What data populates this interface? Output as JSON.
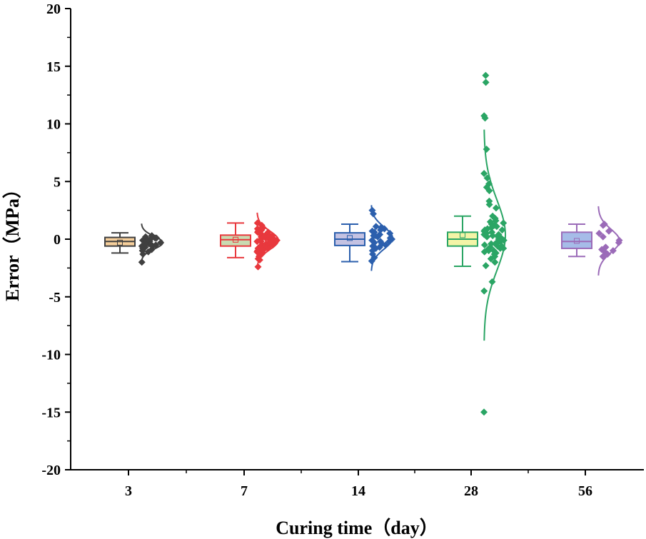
{
  "chart_data": {
    "type": "box",
    "xlabel": "Curing time（day）",
    "ylabel": "Error（MPa）",
    "ylim": [
      -20,
      20
    ],
    "yticks": [
      -20,
      -15,
      -10,
      -5,
      0,
      5,
      10,
      15,
      20
    ],
    "ytick_labels": [
      "-20",
      "-15",
      "-10",
      "-5",
      "0",
      "5",
      "10",
      "15",
      "20"
    ],
    "categories": [
      "3",
      "7",
      "14",
      "28",
      "56"
    ],
    "series": [
      {
        "name": "3",
        "color": "#404040",
        "box_fill": "#f6cf9b",
        "whisker_low": -1.2,
        "q1": -0.6,
        "median": -0.2,
        "q3": 0.15,
        "whisker_high": 0.55,
        "mean": -0.3,
        "points": [
          0.3,
          0.1,
          -0.1,
          -0.2,
          -0.3,
          -0.2,
          -0.4,
          -0.5,
          -0.6,
          -0.7,
          -1.0,
          -1.1,
          -1.3,
          -2.0,
          0.0,
          -0.3,
          -0.8,
          -0.5,
          0.2,
          -0.1,
          -0.6,
          -0.9,
          -0.4,
          0.1
        ],
        "curve": {
          "mean": -0.3,
          "sd": 0.55
        }
      },
      {
        "name": "7",
        "color": "#e8383d",
        "box_fill": "#c9dbb1",
        "whisker_low": -1.6,
        "q1": -0.6,
        "median": -0.05,
        "q3": 0.35,
        "whisker_high": 1.4,
        "mean": -0.05,
        "points": [
          1.4,
          1.2,
          1.0,
          0.9,
          0.8,
          0.7,
          0.6,
          0.5,
          0.4,
          0.3,
          0.2,
          0.1,
          0.0,
          -0.1,
          -0.2,
          -0.3,
          -0.4,
          -0.5,
          -0.6,
          -0.7,
          -0.8,
          -0.9,
          -1.0,
          -1.1,
          -1.2,
          -1.3,
          -1.4,
          -1.5,
          -1.7,
          -1.8,
          -2.4,
          0.6,
          0.3,
          0.0,
          -0.2,
          -0.4,
          -0.6,
          -0.8,
          0.2,
          -0.1,
          -0.3,
          -0.5,
          -0.7,
          -1.0,
          0.8,
          0.5,
          -1.2,
          -0.9
        ],
        "curve": {
          "mean": -0.1,
          "sd": 0.8
        }
      },
      {
        "name": "14",
        "color": "#2b5fad",
        "box_fill": "#c4c2e2",
        "whisker_low": -1.95,
        "q1": -0.55,
        "median": 0.0,
        "q3": 0.55,
        "whisker_high": 1.3,
        "mean": 0.1,
        "points": [
          2.5,
          2.2,
          1.1,
          1.0,
          0.8,
          0.7,
          0.6,
          0.5,
          0.4,
          0.3,
          0.2,
          0.1,
          0.0,
          -0.1,
          -0.2,
          -0.3,
          -0.4,
          -0.5,
          -0.6,
          -0.8,
          -1.0,
          -1.3,
          -1.6,
          -1.9,
          0.9,
          0.3,
          -0.2,
          -0.7
        ],
        "curve": {
          "mean": 0.1,
          "sd": 0.95
        }
      },
      {
        "name": "28",
        "color": "#2aa564",
        "box_fill": "#f4f4a7",
        "whisker_low": -2.35,
        "q1": -0.6,
        "median": 0.0,
        "q3": 0.6,
        "whisker_high": 2.0,
        "mean": 0.35,
        "points": [
          14.2,
          13.6,
          10.7,
          10.5,
          7.8,
          5.7,
          5.3,
          4.8,
          4.5,
          4.2,
          3.3,
          3.0,
          2.7,
          2.0,
          1.8,
          1.6,
          1.5,
          1.3,
          1.2,
          1.0,
          0.9,
          0.8,
          0.7,
          0.6,
          0.5,
          0.4,
          0.3,
          0.2,
          0.1,
          0.0,
          -0.1,
          -0.2,
          -0.3,
          -0.4,
          -0.5,
          -0.6,
          -0.7,
          -0.8,
          -0.9,
          -1.0,
          -1.1,
          -1.2,
          -1.3,
          -1.5,
          -1.7,
          -2.0,
          -2.3,
          -3.7,
          -4.5,
          -15.0,
          1.1,
          0.4,
          -0.2,
          -0.6,
          0.8,
          -1.0,
          0.2,
          -0.4,
          1.4,
          -0.8
        ],
        "curve": {
          "mean": 0.35,
          "sd": 3.05
        }
      },
      {
        "name": "56",
        "color": "#9b6bb8",
        "box_fill": "#a6bce8",
        "whisker_low": -1.5,
        "q1": -0.8,
        "median": -0.2,
        "q3": 0.6,
        "whisker_high": 1.3,
        "mean": -0.15,
        "points": [
          1.3,
          1.2,
          0.7,
          0.5,
          0.2,
          -0.1,
          -0.3,
          -0.7,
          -0.9,
          -1.0,
          -1.1,
          -1.3,
          -1.5
        ],
        "curve": {
          "mean": -0.15,
          "sd": 1.0
        }
      }
    ]
  }
}
